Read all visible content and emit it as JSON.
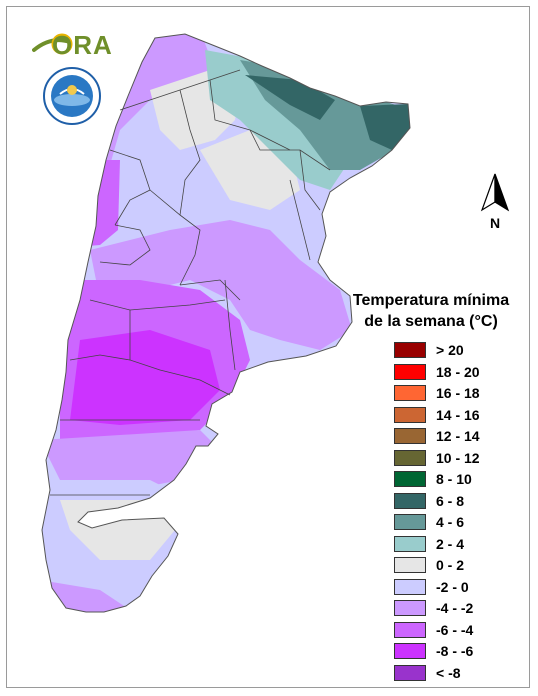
{
  "logo": {
    "text": "ORA"
  },
  "seal": {
    "text": ""
  },
  "north_arrow": {
    "label": "N"
  },
  "legend": {
    "title_line1": "Temperatura mínima",
    "title_line2": "de la semana (°C)",
    "items": [
      {
        "label": "> 20",
        "color": "#990000"
      },
      {
        "label": "18 - 20",
        "color": "#ff0000"
      },
      {
        "label": "16 - 18",
        "color": "#ff6633"
      },
      {
        "label": "14 - 16",
        "color": "#cc6633"
      },
      {
        "label": "12 - 14",
        "color": "#996633"
      },
      {
        "label": "10 - 12",
        "color": "#666633"
      },
      {
        "label": "8 - 10",
        "color": "#006633"
      },
      {
        "label": "6 - 8",
        "color": "#336666"
      },
      {
        "label": "4 - 6",
        "color": "#669999"
      },
      {
        "label": "2 - 4",
        "color": "#99cccc"
      },
      {
        "label": "0 - 2",
        "color": "#e6e6e6"
      },
      {
        "label": "-2 - 0",
        "color": "#ccccff"
      },
      {
        "label": "-4 - -2",
        "color": "#cc99ff"
      },
      {
        "label": "-6 - -4",
        "color": "#cc66ff"
      },
      {
        "label": "-8 - -6",
        "color": "#cc33ff"
      },
      {
        "label": "< -8",
        "color": "#9933cc"
      }
    ]
  }
}
